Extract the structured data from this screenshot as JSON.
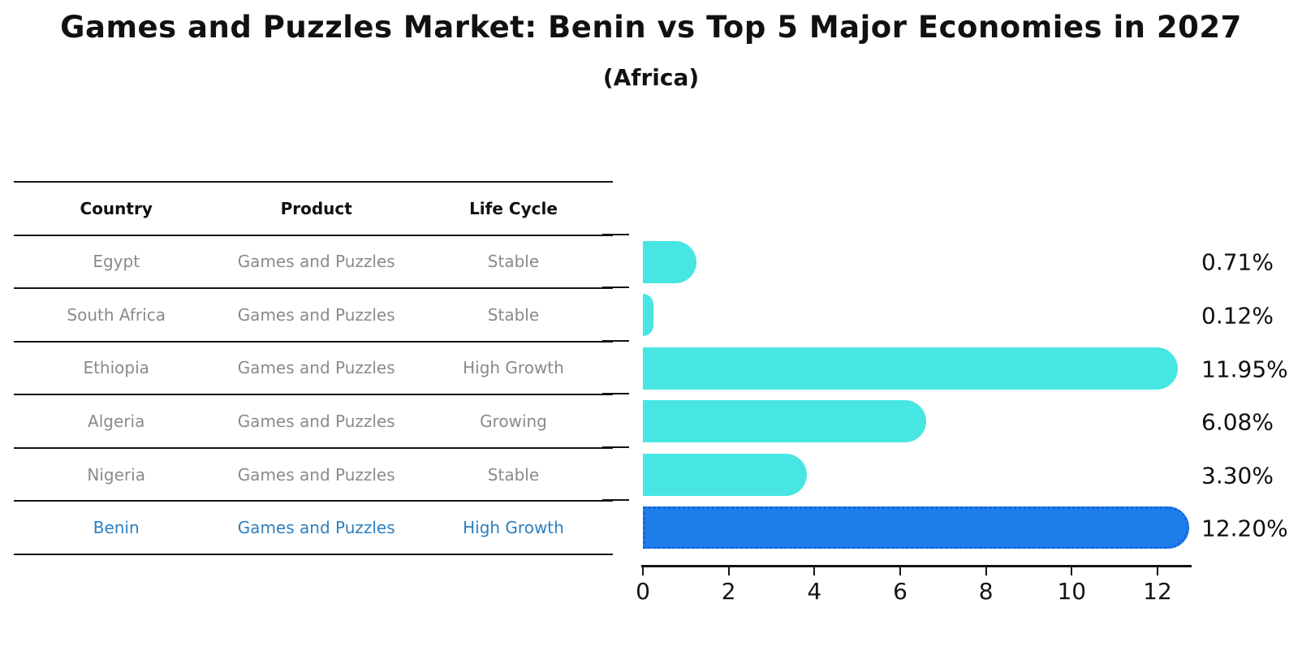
{
  "chart_data": {
    "type": "bar",
    "orientation": "horizontal",
    "title": "Games and Puzzles Market: Benin vs Top 5 Major Economies in 2027",
    "subtitle": "(Africa)",
    "categories": [
      "Egypt",
      "South Africa",
      "Ethiopia",
      "Algeria",
      "Nigeria",
      "Benin"
    ],
    "values": [
      0.71,
      0.12,
      11.95,
      6.08,
      3.3,
      12.2
    ],
    "value_labels": [
      "0.71%",
      "0.12%",
      "11.95%",
      "6.08%",
      "3.30%",
      "12.20%"
    ],
    "xlabel": "",
    "ylabel": "",
    "xticks": [
      0,
      2,
      4,
      6,
      8,
      10,
      12
    ],
    "xlim": [
      0,
      12.8
    ],
    "grid": false,
    "legend_position": "none",
    "bar_color": "#47e6e2",
    "highlight_color": "#1e7ee9",
    "highlight_index": 5
  },
  "table": {
    "headers": [
      "Country",
      "Product",
      "Life Cycle"
    ],
    "rows": [
      [
        "Egypt",
        "Games and Puzzles",
        "Stable"
      ],
      [
        "South Africa",
        "Games and Puzzles",
        "Stable"
      ],
      [
        "Ethiopia",
        "Games and Puzzles",
        "High Growth"
      ],
      [
        "Algeria",
        "Games and Puzzles",
        "Growing"
      ],
      [
        "Nigeria",
        "Games and Puzzles",
        "Stable"
      ],
      [
        "Benin",
        "Games and Puzzles",
        "High Growth"
      ]
    ],
    "highlight_row": "Benin"
  },
  "colors": {
    "bar": "#47e6e2",
    "highlight_bar": "#1e7ee9",
    "highlight_text": "#2c7fc0",
    "row_text": "#8a8a8a",
    "header_text": "#111111",
    "axis": "#141414"
  }
}
